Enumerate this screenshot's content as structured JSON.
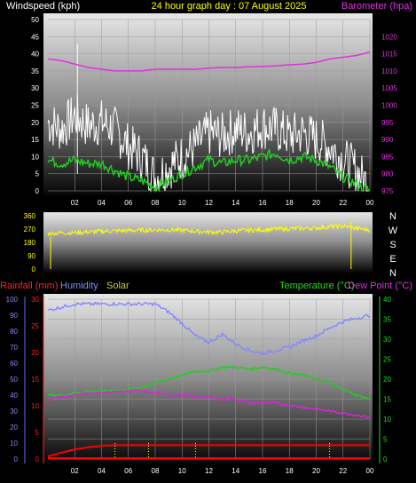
{
  "header": {
    "left_title": "Windspeed (kph)",
    "center_title": "24 hour graph day : 07 August 2025",
    "right_title": "Barometer (hpa)"
  },
  "direction_labels": [
    "N",
    "W",
    "S",
    "E",
    "N"
  ],
  "bottom_header": {
    "rainfall": "Rainfall (mm)",
    "humidity": "Humidity",
    "solar": "Solar",
    "temperature": "Temperature (°C)",
    "dewpoint": "Dew Point (°C)"
  },
  "colors": {
    "wind_gust": "#ffffff",
    "wind_avg": "#22cc22",
    "barometer": "#dd33dd",
    "direction": "#ffff00",
    "rain": "#ff0000",
    "humidity": "#8888ff",
    "solar": "#ffff00",
    "temperature": "#22cc22",
    "dewpoint": "#dd22dd",
    "grid": "#9a9a9a"
  },
  "chart_data": [
    {
      "type": "line",
      "x_ticks": [
        "02",
        "04",
        "06",
        "08",
        "10",
        "12",
        "14",
        "16",
        "18",
        "20",
        "22",
        "00"
      ],
      "x_range_hours": [
        0,
        24
      ],
      "y_left_ticks": [
        "0",
        "5",
        "10",
        "15",
        "20",
        "25",
        "30",
        "35",
        "40",
        "45",
        "50"
      ],
      "ylim_left": [
        0,
        50
      ],
      "y_right_ticks": [
        "975",
        "980",
        "985",
        "990",
        "995",
        "1000",
        "1005",
        "1010",
        "1015",
        "1020"
      ],
      "ylim_right": [
        975,
        1025
      ],
      "grid": true,
      "series": [
        {
          "name": "Windspeed gust",
          "x": [
            0,
            1,
            2,
            3,
            4,
            5,
            6,
            7,
            8,
            9,
            10,
            11,
            12,
            13,
            14,
            15,
            16,
            17,
            18,
            19,
            20,
            21,
            22,
            23,
            24
          ],
          "y": [
            20,
            18,
            22,
            19,
            20,
            18,
            13,
            10,
            4,
            7,
            10,
            13,
            17,
            16,
            18,
            17,
            19,
            18,
            16,
            17,
            15,
            13,
            9,
            6,
            1
          ]
        },
        {
          "name": "Windspeed average",
          "x": [
            0,
            1,
            2,
            3,
            4,
            5,
            6,
            7,
            8,
            9,
            10,
            11,
            12,
            13,
            14,
            15,
            16,
            17,
            18,
            19,
            20,
            21,
            22,
            23,
            24
          ],
          "y": [
            9,
            8,
            9,
            8,
            8,
            6,
            4,
            3,
            1,
            3,
            5,
            7,
            9,
            8,
            9,
            9,
            10,
            11,
            9,
            10,
            9,
            7,
            4,
            2,
            0
          ]
        },
        {
          "name": "Barometer",
          "x": [
            0,
            1,
            2,
            3,
            4,
            5,
            6,
            7,
            8,
            9,
            10,
            11,
            12,
            13,
            14,
            15,
            16,
            17,
            18,
            19,
            20,
            21,
            22,
            23,
            24
          ],
          "y": [
            1013.5,
            1013,
            1012,
            1011,
            1010.5,
            1010,
            1010,
            1010,
            1010.5,
            1010.5,
            1010.5,
            1010.5,
            1010.8,
            1011,
            1011,
            1011.2,
            1011.3,
            1011.5,
            1011.8,
            1012,
            1012.5,
            1013.5,
            1014,
            1014.5,
            1015.5
          ]
        }
      ]
    },
    {
      "type": "line",
      "x_range_hours": [
        0,
        24
      ],
      "y_left_ticks": [
        "0",
        "90",
        "180",
        "270",
        "360"
      ],
      "ylim": [
        0,
        360
      ],
      "series": [
        {
          "name": "Wind direction",
          "x": [
            0,
            1,
            2,
            3,
            4,
            5,
            6,
            7,
            8,
            9,
            10,
            11,
            12,
            13,
            14,
            15,
            16,
            17,
            18,
            19,
            20,
            21,
            22,
            23,
            24
          ],
          "y": [
            240,
            245,
            245,
            250,
            255,
            258,
            260,
            262,
            265,
            265,
            262,
            255,
            250,
            250,
            258,
            262,
            265,
            270,
            272,
            275,
            278,
            285,
            290,
            275,
            265
          ]
        }
      ]
    },
    {
      "type": "line",
      "x_ticks": [
        "02",
        "04",
        "06",
        "08",
        "10",
        "12",
        "14",
        "16",
        "18",
        "20",
        "22",
        "00"
      ],
      "x_range_hours": [
        0,
        24
      ],
      "y_rain_ticks": [
        "0",
        "5",
        "10",
        "15",
        "20",
        "25",
        "30"
      ],
      "ylim_rain": [
        0,
        30
      ],
      "y_humidity_ticks": [
        "0",
        "10",
        "20",
        "30",
        "40",
        "50",
        "60",
        "70",
        "80",
        "90",
        "100"
      ],
      "ylim_humidity": [
        0,
        100
      ],
      "y_temp_ticks": [
        "0",
        "5",
        "10",
        "15",
        "20",
        "25",
        "30",
        "35",
        "40"
      ],
      "ylim_temp": [
        0,
        40
      ],
      "grid": true,
      "series": [
        {
          "name": "Humidity",
          "x": [
            0,
            1,
            2,
            3,
            4,
            5,
            6,
            7,
            8,
            9,
            10,
            11,
            12,
            13,
            14,
            15,
            16,
            17,
            18,
            19,
            20,
            21,
            22,
            23,
            24
          ],
          "y": [
            93,
            95,
            97,
            97,
            97,
            97,
            97,
            97,
            97,
            92,
            85,
            77,
            73,
            78,
            72,
            68,
            66,
            68,
            70,
            74,
            77,
            82,
            86,
            88,
            90
          ]
        },
        {
          "name": "Temperature",
          "x": [
            0,
            1,
            2,
            3,
            4,
            5,
            6,
            7,
            8,
            9,
            10,
            11,
            12,
            13,
            14,
            15,
            16,
            17,
            18,
            19,
            20,
            21,
            22,
            23,
            24
          ],
          "y": [
            16,
            16,
            16.5,
            17,
            17,
            17.3,
            17.5,
            18,
            19,
            20,
            21,
            22,
            22,
            23,
            23,
            22.5,
            23,
            22.5,
            21.5,
            21,
            20,
            19,
            17.5,
            16,
            15
          ]
        },
        {
          "name": "Dew Point",
          "x": [
            0,
            1,
            2,
            3,
            4,
            5,
            6,
            7,
            8,
            9,
            10,
            11,
            12,
            13,
            14,
            15,
            16,
            17,
            18,
            19,
            20,
            21,
            22,
            23,
            24
          ],
          "y": [
            15,
            15.5,
            16,
            16.5,
            16.5,
            16.8,
            17,
            17,
            16.5,
            16,
            16,
            15.5,
            15.5,
            15,
            15,
            14,
            14,
            14,
            13.5,
            13,
            12.5,
            12,
            11.5,
            11,
            10.5
          ]
        },
        {
          "name": "Rainfall",
          "x": [
            0,
            1,
            2,
            3,
            4,
            5,
            6,
            7,
            8,
            9,
            10,
            11,
            12,
            13,
            14,
            15,
            16,
            17,
            18,
            19,
            20,
            21,
            22,
            23,
            24
          ],
          "y": [
            0.5,
            1.2,
            1.8,
            2.2,
            2.5,
            2.6,
            2.6,
            2.6,
            2.6,
            2.6,
            2.6,
            2.6,
            2.6,
            2.6,
            2.6,
            2.6,
            2.6,
            2.6,
            2.6,
            2.6,
            2.6,
            2.6,
            2.6,
            2.6,
            2.6
          ]
        }
      ]
    }
  ]
}
